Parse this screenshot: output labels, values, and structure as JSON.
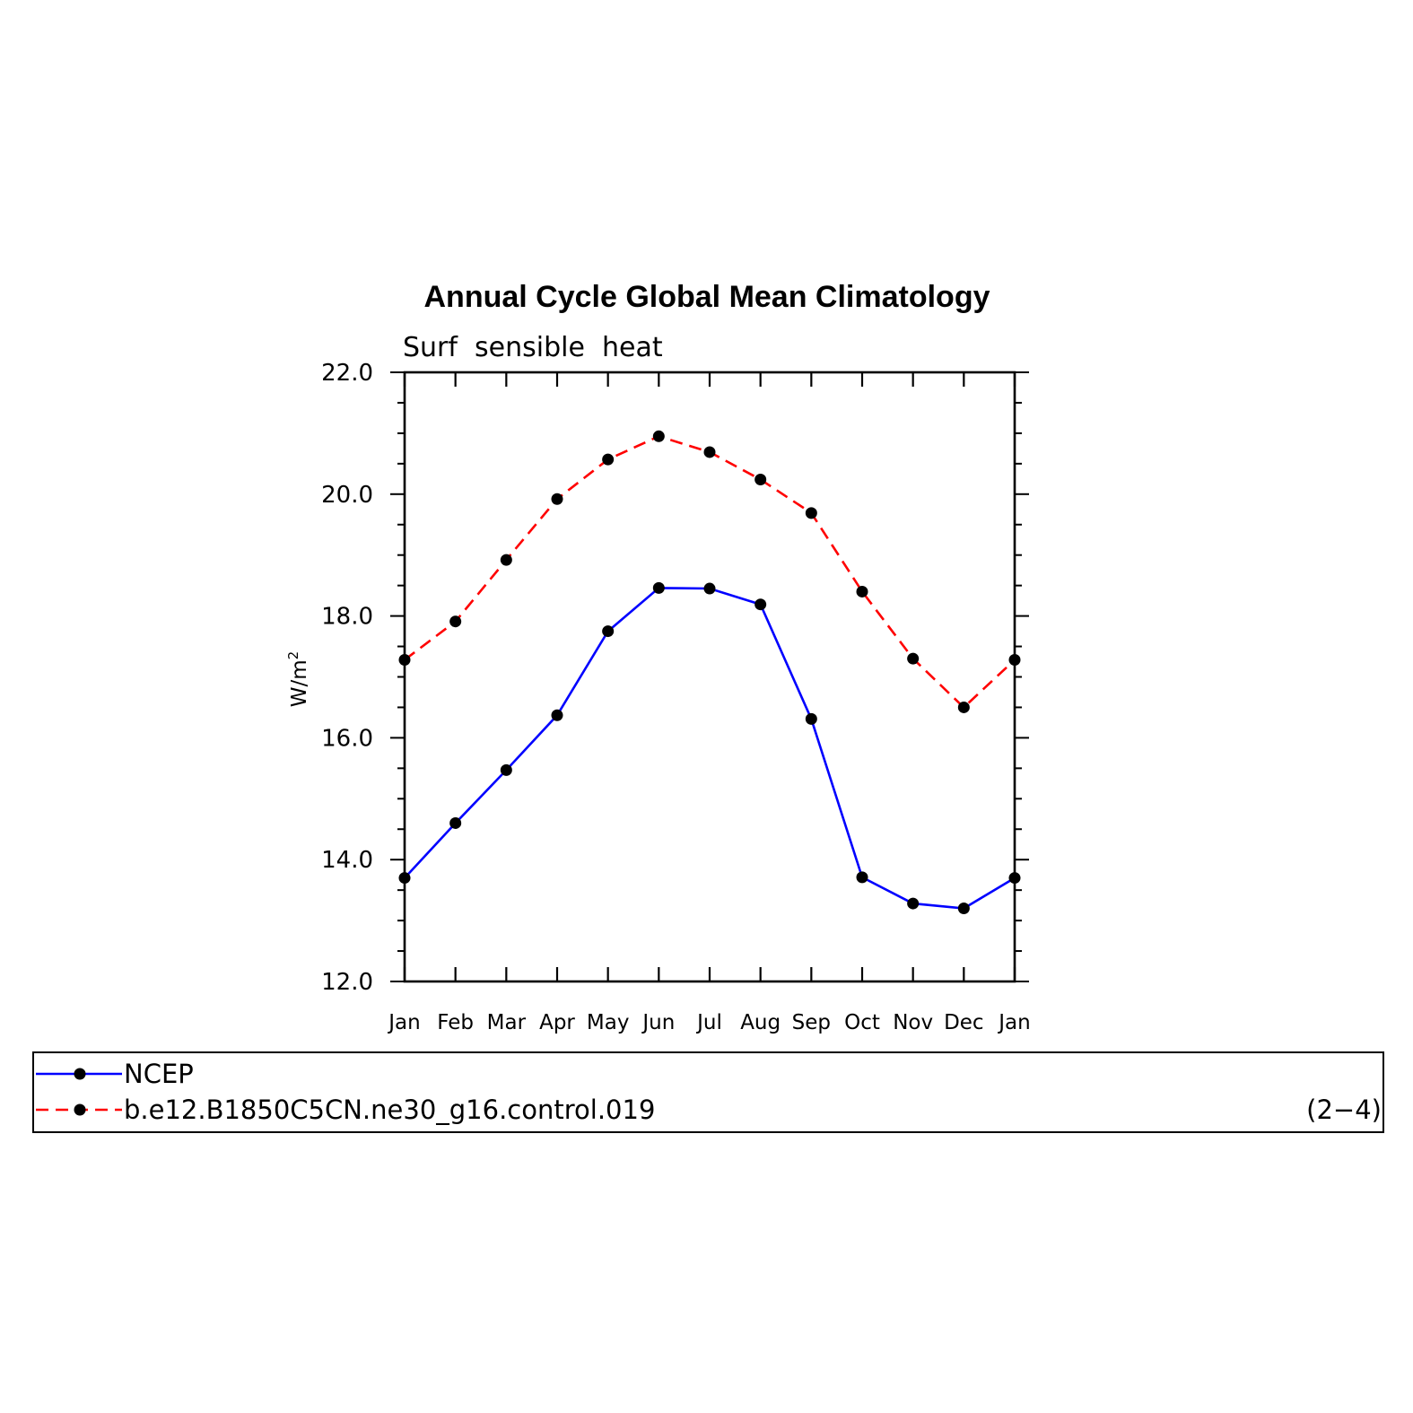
{
  "chart_data": {
    "type": "line",
    "title": "Annual Cycle Global Mean Climatology",
    "subtitle": "Surf  sensible  heat",
    "ylabel": "W/m",
    "ylabel_superscript": "2",
    "xlabel": "",
    "x": [
      "Jan",
      "Feb",
      "Mar",
      "Apr",
      "May",
      "Jun",
      "Jul",
      "Aug",
      "Sep",
      "Oct",
      "Nov",
      "Dec",
      "Jan"
    ],
    "ylim": [
      12.0,
      22.0
    ],
    "yticks": [
      "12.0",
      "14.0",
      "16.0",
      "18.0",
      "20.0",
      "22.0"
    ],
    "grid": false,
    "legend_placement": "bottom",
    "series": [
      {
        "name": "NCEP",
        "color": "#0000ff",
        "dash": "solid",
        "values": [
          13.7,
          14.6,
          15.47,
          16.37,
          17.75,
          18.46,
          18.45,
          18.19,
          16.31,
          13.71,
          13.28,
          13.2,
          13.7
        ]
      },
      {
        "name": "b.e12.B1850C5CN.ne30_g16.control.019",
        "color": "#ff0000",
        "dash": "dashed",
        "values": [
          17.28,
          17.91,
          18.92,
          19.92,
          20.57,
          20.95,
          20.69,
          20.24,
          19.69,
          18.4,
          17.3,
          16.5,
          17.28
        ]
      }
    ],
    "annotation": "(2−4)"
  }
}
